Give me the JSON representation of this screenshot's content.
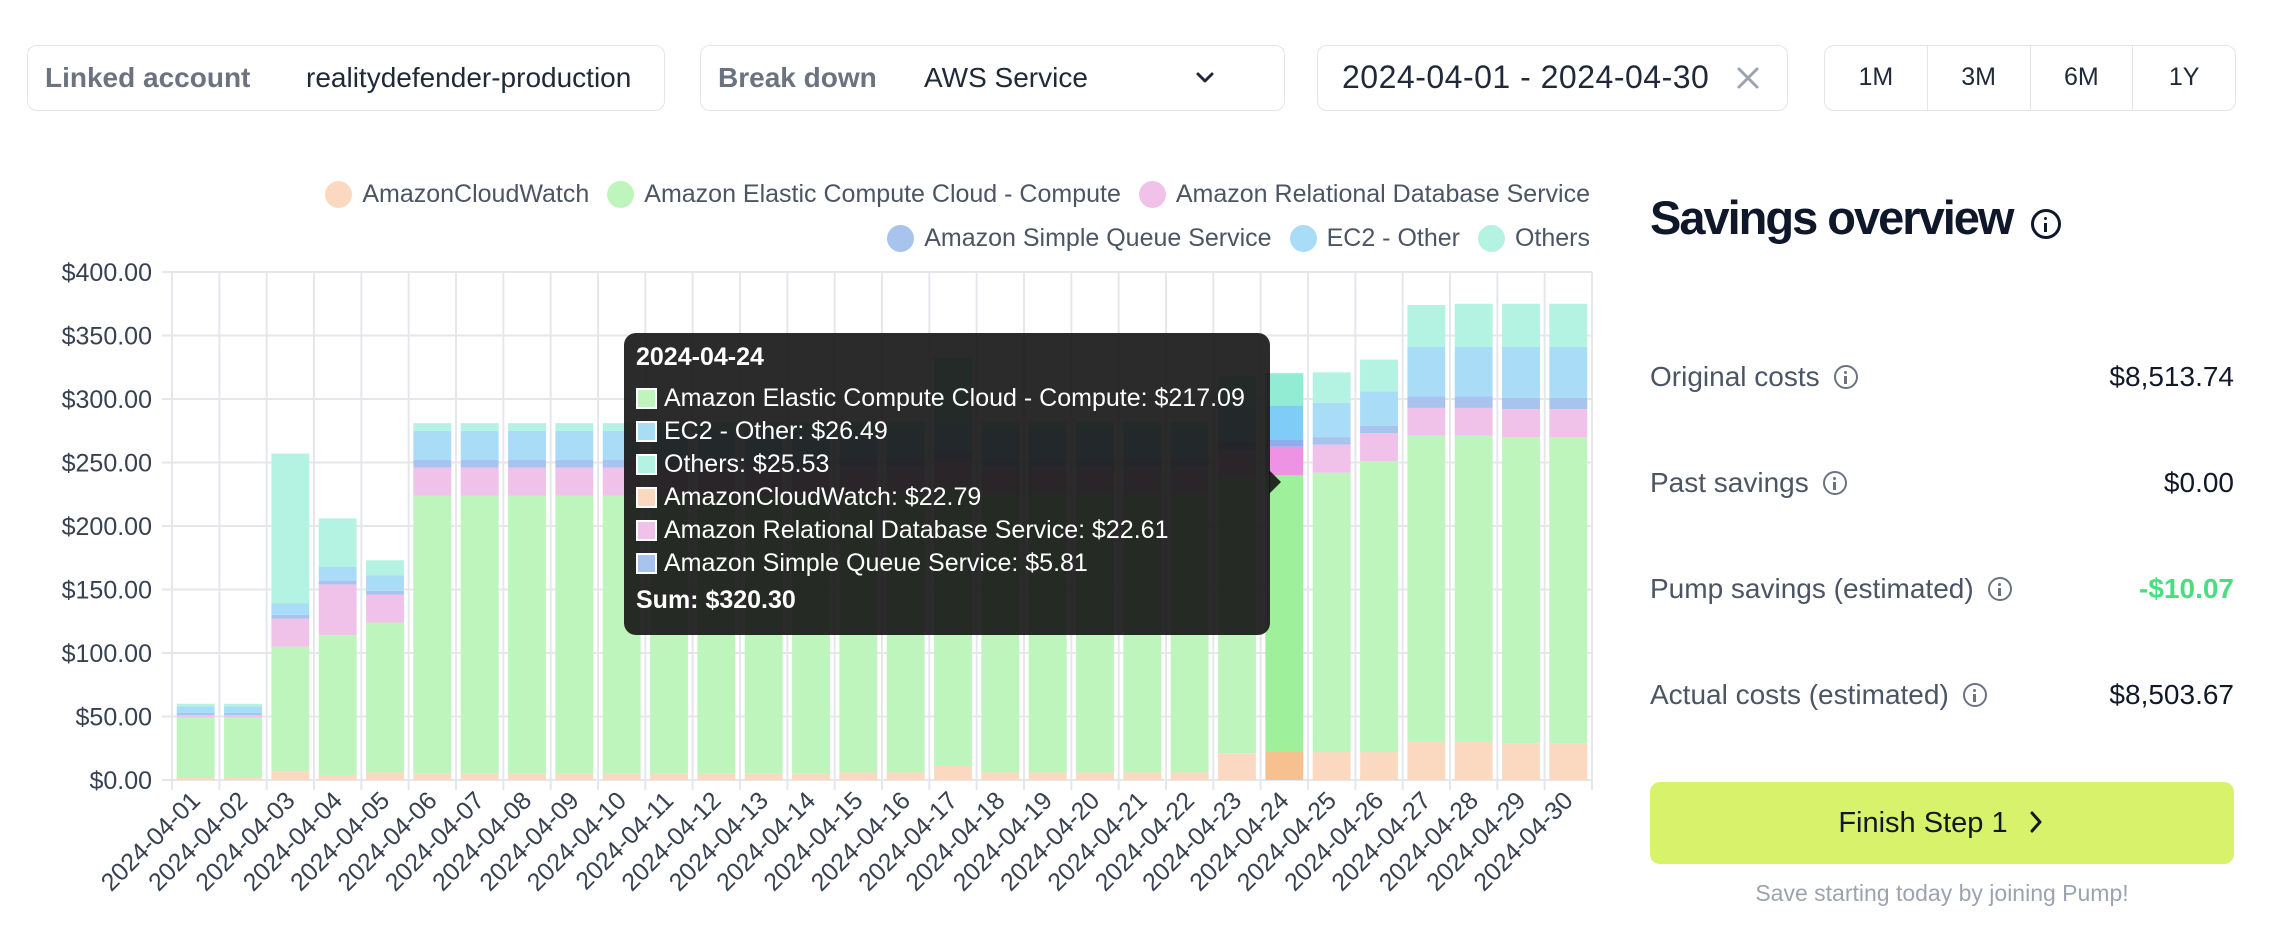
{
  "filters": {
    "linked_account_label": "Linked account",
    "linked_account_value": "realitydefender-production",
    "breakdown_label": "Break down",
    "breakdown_value": "AWS Service",
    "date_range": "2024-04-01 - 2024-04-30",
    "ranges": [
      "1M",
      "3M",
      "6M",
      "1Y"
    ]
  },
  "legend": [
    {
      "name": "AmazonCloudWatch",
      "color": "#fbd9c0"
    },
    {
      "name": "Amazon Elastic Compute Cloud - Compute",
      "color": "#bdf5bd"
    },
    {
      "name": "Amazon Relational Database Service",
      "color": "#f0c2ea"
    },
    {
      "name": "Amazon Simple Queue Service",
      "color": "#a9c3ef"
    },
    {
      "name": "EC2 - Other",
      "color": "#a8dcf7"
    },
    {
      "name": "Others",
      "color": "#b4f2e2"
    }
  ],
  "chart_data": {
    "type": "bar",
    "stacked": true,
    "categories": [
      "2024-04-01",
      "2024-04-02",
      "2024-04-03",
      "2024-04-04",
      "2024-04-05",
      "2024-04-06",
      "2024-04-07",
      "2024-04-08",
      "2024-04-09",
      "2024-04-10",
      "2024-04-11",
      "2024-04-12",
      "2024-04-13",
      "2024-04-14",
      "2024-04-15",
      "2024-04-16",
      "2024-04-17",
      "2024-04-18",
      "2024-04-19",
      "2024-04-20",
      "2024-04-21",
      "2024-04-22",
      "2024-04-23",
      "2024-04-24",
      "2024-04-25",
      "2024-04-26",
      "2024-04-27",
      "2024-04-28",
      "2024-04-29",
      "2024-04-30"
    ],
    "ylim": [
      0,
      400
    ],
    "yticks": [
      "$0.00",
      "$50.00",
      "$100.00",
      "$150.00",
      "$200.00",
      "$250.00",
      "$300.00",
      "$350.00",
      "$400.00"
    ],
    "highlight_index": 23,
    "series": [
      {
        "name": "AmazonCloudWatch",
        "color": "#fbd9c0",
        "highlight": "#f7c08f",
        "values": [
          2,
          2,
          7,
          4,
          6,
          5,
          5,
          5,
          5,
          5,
          5,
          5,
          5,
          5,
          6,
          6,
          11,
          6,
          6,
          6,
          6,
          6,
          21,
          22.79,
          22,
          22,
          30,
          30,
          29,
          29
        ]
      },
      {
        "name": "Amazon Elastic Compute Cloud - Compute",
        "color": "#bdf5bd",
        "highlight": "#9ef09a",
        "values": [
          47,
          47,
          98,
          110,
          118,
          219,
          219,
          219,
          219,
          219,
          219,
          219,
          219,
          219,
          219,
          219,
          219,
          219,
          219,
          219,
          219,
          219,
          217,
          217.09,
          220,
          229,
          241,
          241,
          241,
          241
        ]
      },
      {
        "name": "Amazon Relational Database Service",
        "color": "#f0c2ea",
        "highlight": "#ee92e4",
        "values": [
          2,
          2,
          22,
          40,
          22,
          22,
          22,
          22,
          22,
          22,
          22,
          22,
          22,
          22,
          22,
          22,
          22,
          22,
          22,
          22,
          22,
          22,
          22,
          22.61,
          22,
          22,
          22,
          22,
          22,
          22
        ]
      },
      {
        "name": "Amazon Simple Queue Service",
        "color": "#a9c3ef",
        "highlight": "#8fadee",
        "values": [
          2,
          2,
          3,
          3,
          3,
          6,
          6,
          6,
          6,
          6,
          6,
          6,
          6,
          6,
          6,
          6,
          6,
          6,
          6,
          6,
          6,
          6,
          6,
          5.81,
          6,
          6,
          9,
          9,
          9,
          9
        ]
      },
      {
        "name": "EC2 - Other",
        "color": "#a8dcf7",
        "highlight": "#7fcdf6",
        "values": [
          5,
          5,
          9,
          11,
          12,
          23,
          23,
          23,
          23,
          23,
          23,
          23,
          23,
          23,
          23,
          23,
          23,
          23,
          23,
          23,
          23,
          23,
          26,
          26.49,
          27,
          27,
          39,
          39,
          40,
          40
        ]
      },
      {
        "name": "Others",
        "color": "#b4f2e2",
        "highlight": "#92ecd4",
        "values": [
          2,
          2,
          118,
          38,
          12,
          6,
          6,
          6,
          6,
          6,
          6,
          6,
          6,
          6,
          6,
          6,
          52,
          6,
          6,
          6,
          6,
          6,
          26,
          25.53,
          24,
          25,
          33,
          34,
          34,
          34
        ]
      }
    ]
  },
  "tooltip": {
    "title": "2024-04-24",
    "rows": [
      {
        "text": "Amazon Elastic Compute Cloud - Compute: $217.09",
        "color": "#bdf5bd"
      },
      {
        "text": "EC2 - Other: $26.49",
        "color": "#a8dcf7"
      },
      {
        "text": "Others: $25.53",
        "color": "#b4f2e2"
      },
      {
        "text": "AmazonCloudWatch: $22.79",
        "color": "#fbd9c0"
      },
      {
        "text": "Amazon Relational Database Service: $22.61",
        "color": "#f0c2ea"
      },
      {
        "text": "Amazon Simple Queue Service: $5.81",
        "color": "#a9c3ef"
      }
    ],
    "sum": "Sum: $320.30"
  },
  "savings": {
    "title": "Savings overview",
    "rows": [
      {
        "label": "Original costs",
        "value": "$8,513.74",
        "color": "#111827"
      },
      {
        "label": "Past savings",
        "value": "$0.00",
        "color": "#111827"
      },
      {
        "label": "Pump savings (estimated)",
        "value": "-$10.07",
        "color": "#4ade80"
      },
      {
        "label": "Actual costs (estimated)",
        "value": "$8,503.67",
        "color": "#111827"
      }
    ],
    "cta_label": "Finish Step 1",
    "cta_color": "#d9f26b",
    "footer": "Save starting today by joining Pump!"
  }
}
